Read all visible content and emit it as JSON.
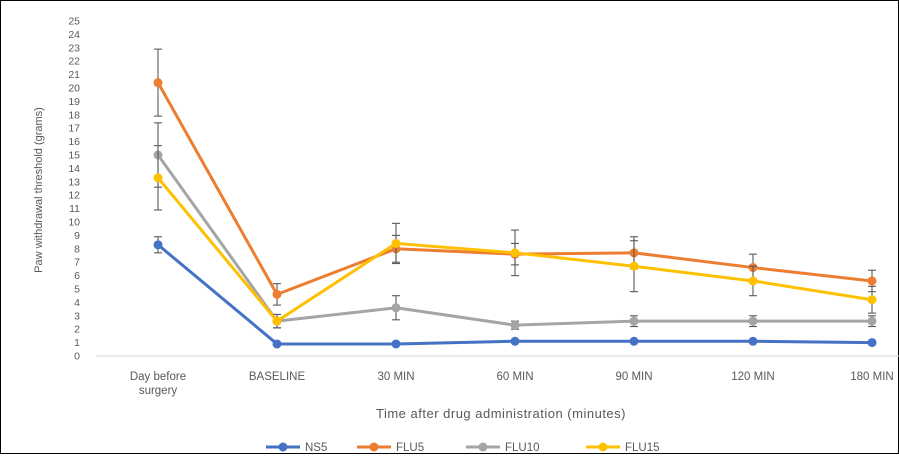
{
  "chart_data": {
    "type": "line",
    "xlabel": "Time after drug administration  (minutes)",
    "ylabel": "Paw withdrawal threshold (grams)",
    "categories": [
      "Day before surgery",
      "BASELINE",
      "30 MIN",
      "60 MIN",
      "90 MIN",
      "120 MIN",
      "180 MIN"
    ],
    "ylim": [
      0,
      25
    ],
    "yticks": [
      0,
      1,
      2,
      3,
      4,
      5,
      6,
      7,
      8,
      9,
      10,
      11,
      12,
      13,
      14,
      15,
      16,
      17,
      18,
      19,
      20,
      21,
      22,
      23,
      24,
      25
    ],
    "grid": false,
    "legend": "bottom",
    "series": [
      {
        "name": "NS5",
        "color": "#4472C4",
        "values": [
          8.3,
          0.9,
          0.9,
          1.1,
          1.1,
          1.1,
          1.0
        ],
        "errors": [
          0.6,
          0,
          0,
          0,
          0,
          0,
          0
        ]
      },
      {
        "name": "FLU5",
        "color": "#ED7D31",
        "values": [
          20.4,
          4.6,
          8.0,
          7.6,
          7.7,
          6.6,
          5.6
        ],
        "errors": [
          2.5,
          0.8,
          1.0,
          0.8,
          1.2,
          1.0,
          0.8
        ]
      },
      {
        "name": "FLU10",
        "color": "#A5A5A5",
        "values": [
          15.0,
          2.6,
          3.6,
          2.3,
          2.6,
          2.6,
          2.6
        ],
        "errors": [
          2.4,
          0.5,
          0.9,
          0.3,
          0.4,
          0.4,
          0.4
        ]
      },
      {
        "name": "FLU15",
        "color": "#FFC000",
        "values": [
          13.3,
          2.6,
          8.4,
          7.7,
          6.7,
          5.6,
          4.2
        ],
        "errors": [
          2.4,
          0.5,
          1.5,
          1.7,
          1.9,
          1.1,
          1.0
        ]
      }
    ]
  }
}
